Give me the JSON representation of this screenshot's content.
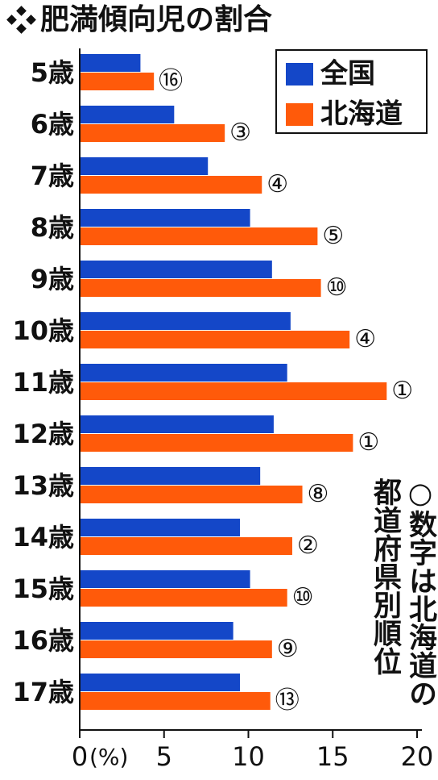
{
  "chart_data": {
    "type": "hbar",
    "title": "肥満傾向児の割合",
    "categories": [
      "5歳",
      "6歳",
      "7歳",
      "8歳",
      "9歳",
      "10歳",
      "11歳",
      "12歳",
      "13歳",
      "14歳",
      "15歳",
      "16歳",
      "17歳"
    ],
    "series": [
      {
        "name": "全国",
        "color": "#1447c8",
        "values": [
          3.6,
          5.6,
          7.6,
          10.1,
          11.4,
          12.5,
          12.3,
          11.5,
          10.7,
          9.5,
          10.1,
          9.1,
          9.5
        ]
      },
      {
        "name": "北海道",
        "color": "#ff5a0a",
        "values": [
          4.4,
          8.6,
          10.8,
          14.1,
          14.3,
          16.0,
          18.2,
          16.2,
          13.2,
          12.6,
          12.3,
          11.4,
          11.3
        ],
        "ranks": [
          "⑯",
          "③",
          "④",
          "⑤",
          "⑩",
          "④",
          "①",
          "①",
          "⑧",
          "②",
          "⑩",
          "⑨",
          "⑬"
        ]
      }
    ],
    "xlabel": "(%)",
    "xlim": [
      0,
      20
    ],
    "xticks": [
      0,
      5,
      10,
      15,
      20
    ],
    "legend": "top-right",
    "annotation": "○数字は北海道の都道府県別順位"
  }
}
